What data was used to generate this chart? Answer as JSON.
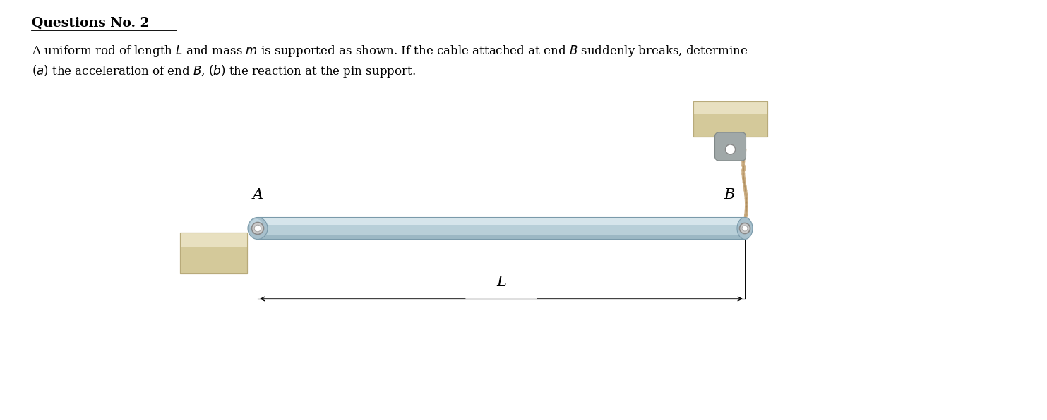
{
  "title": "Questions No. 2",
  "text_line1": "A uniform rod of length $L$ and mass $m$ is supported as shown. If the cable attached at end $B$ suddenly breaks, determine",
  "text_line2": "$(a)$ the acceleration of end $B$, $(b)$ the reaction at the pin support.",
  "bg_color": "#ffffff",
  "rod_color_main": "#b8cfd8",
  "rod_color_highlight": "#dce9ef",
  "rod_color_dark": "#8aaab8",
  "rod_edge_color": "#7a9aaa",
  "wall_color_light": "#e8e0c0",
  "wall_color_mid": "#d4c99a",
  "wall_color_dark": "#b8aa7a",
  "pin_bracket_color": "#a0a8a8",
  "rope_color": "#c8a87a",
  "rope_dark": "#a08050",
  "label_A": "A",
  "label_B": "B",
  "label_L": "L",
  "fig_width": 14.83,
  "fig_height": 5.96,
  "xlim": [
    0,
    14.83
  ],
  "ylim": [
    0,
    5.96
  ]
}
